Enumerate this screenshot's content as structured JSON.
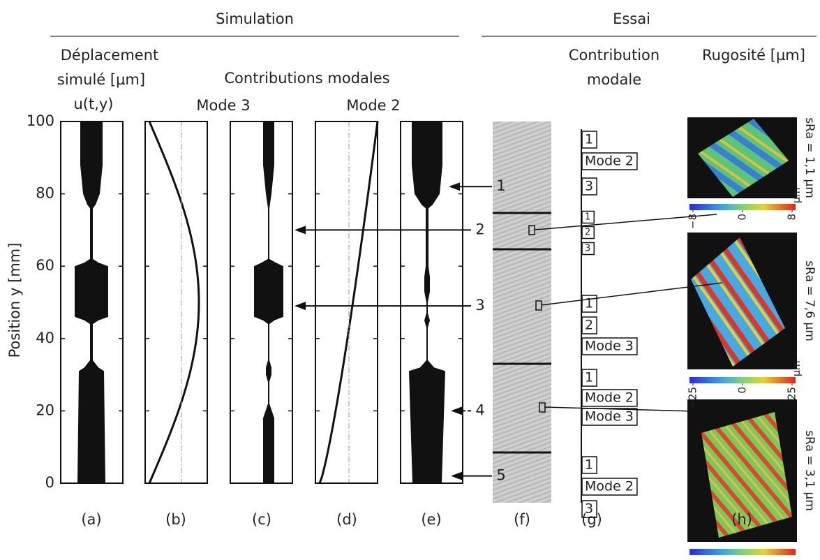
{
  "headers": {
    "simulation": "Simulation",
    "essai": "Essai"
  },
  "panel_a_title": [
    "Déplacement",
    "simulé [µm]",
    "u(t,y)"
  ],
  "contributions_title": "Contributions modales",
  "mode_titles": [
    "Mode 3",
    "Mode 2"
  ],
  "axis": {
    "label": "Position y [mm]",
    "ylim": [
      0,
      100
    ],
    "yticks": [
      0,
      20,
      40,
      60,
      80,
      100
    ]
  },
  "arrows": [
    {
      "label": "1",
      "y": 82
    },
    {
      "label": "2",
      "y": 70
    },
    {
      "label": "3",
      "y": 49
    },
    {
      "label": "4",
      "y": 20
    },
    {
      "label": "5",
      "y": 2
    }
  ],
  "panel_labels": [
    "(a)",
    "(b)",
    "(c)",
    "(d)",
    "(e)",
    "(f)",
    "(g)",
    "(h)"
  ],
  "g": {
    "title": [
      "Contribution",
      "modale"
    ],
    "groups": [
      [
        "1",
        "Mode 2",
        "3"
      ],
      [
        "1",
        "2",
        "3"
      ],
      [
        "1",
        "2",
        "Mode 3"
      ],
      [
        "1",
        "Mode 2",
        "Mode 3"
      ],
      [
        "1",
        "Mode 2",
        "3"
      ]
    ]
  },
  "h": {
    "title": "Rugosité [µm]",
    "samples": [
      {
        "sra": "sRa = 1,1 µm",
        "clim": [
          -8,
          8
        ],
        "ticks": [
          {
            "value": -8,
            "label": "−8"
          },
          0,
          8
        ],
        "unit": "µm"
      },
      {
        "sra": "sRa = 7,6 µm",
        "clim": [
          -25,
          25
        ],
        "ticks": [
          {
            "value": -25,
            "label": "−25"
          },
          0,
          25
        ],
        "unit": "µm"
      },
      {
        "sra": "sRa = 3,1 µm"
      }
    ]
  }
}
